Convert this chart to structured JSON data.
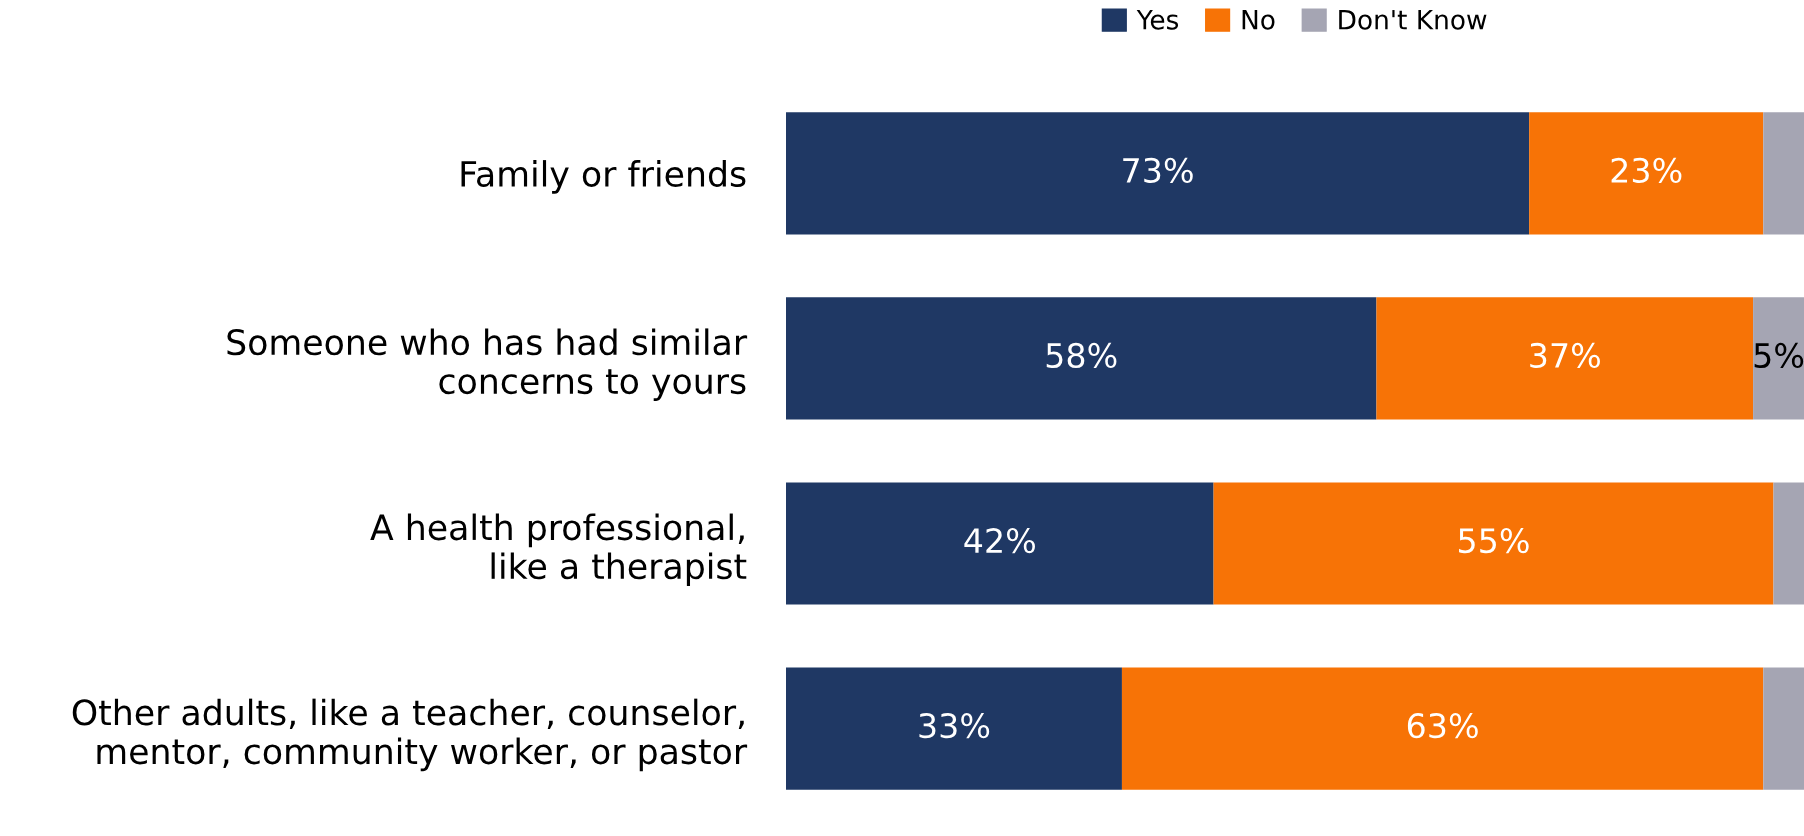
{
  "chart_data": {
    "type": "bar",
    "orientation": "horizontal",
    "stacked": true,
    "legend": "top",
    "grid": false,
    "tick_labels": "y",
    "categories": [
      "Family or friends",
      "Someone who has had similar concerns to yours",
      "A health professional, like a therapist",
      "Other adults, like a teacher, counselor, mentor, community worker, or pastor"
    ],
    "series": [
      {
        "name": "Yes",
        "color": "#1f3864",
        "values": [
          73,
          58,
          42,
          33
        ],
        "value_labels": [
          "73%",
          "58%",
          "42%",
          "33%"
        ]
      },
      {
        "name": "No",
        "color": "#f77306",
        "values": [
          23,
          37,
          55,
          63
        ],
        "value_labels": [
          "23%",
          "37%",
          "55%",
          "63%"
        ]
      },
      {
        "name": "Don't Know",
        "color": "#a5a5b3",
        "values": [
          4,
          5,
          3,
          4
        ],
        "value_labels": [
          null,
          "5%",
          null,
          null
        ]
      }
    ]
  }
}
